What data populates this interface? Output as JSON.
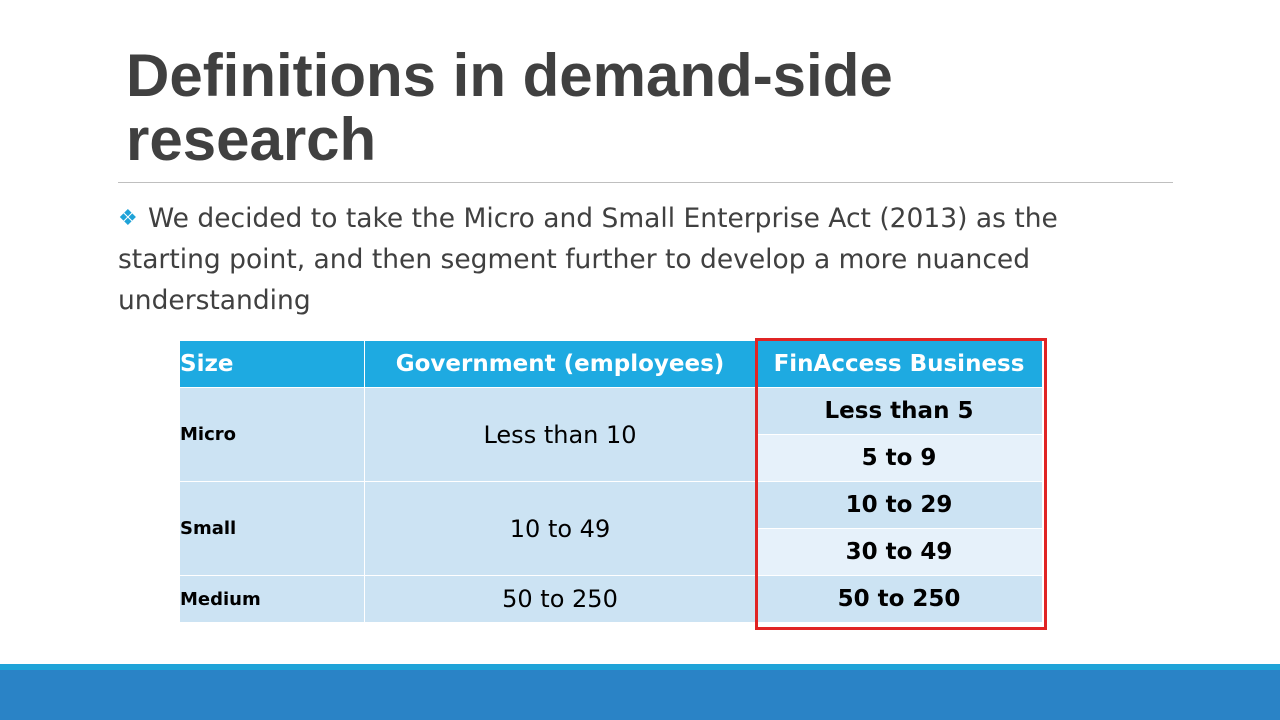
{
  "slide": {
    "title": "Definitions in demand-side research",
    "bullet": {
      "marker_icon": "diamond-cluster-icon",
      "text": "We decided to take the Micro and Small Enterprise Act (2013) as the starting point, and then segment further to develop a more nuanced understanding"
    }
  },
  "table": {
    "headers": [
      "Size",
      "Government (employees)",
      "FinAccess Business"
    ],
    "rows": [
      {
        "size": "Micro",
        "government": "Less than 10",
        "finaccess": [
          "Less than 5",
          "5 to 9"
        ]
      },
      {
        "size": "Small",
        "government": "10 to 49",
        "finaccess": [
          "10 to 29",
          "30 to 49"
        ]
      },
      {
        "size": "Medium",
        "government": "50 to 250",
        "finaccess": [
          "50 to 250"
        ]
      }
    ]
  },
  "colors": {
    "header_fill": "#1eaae1",
    "row_dark": "#cce3f3",
    "row_light": "#e6f1fa",
    "highlight_border": "#e02424",
    "footer_bar": "#2a83c6",
    "title_text": "#404040"
  }
}
